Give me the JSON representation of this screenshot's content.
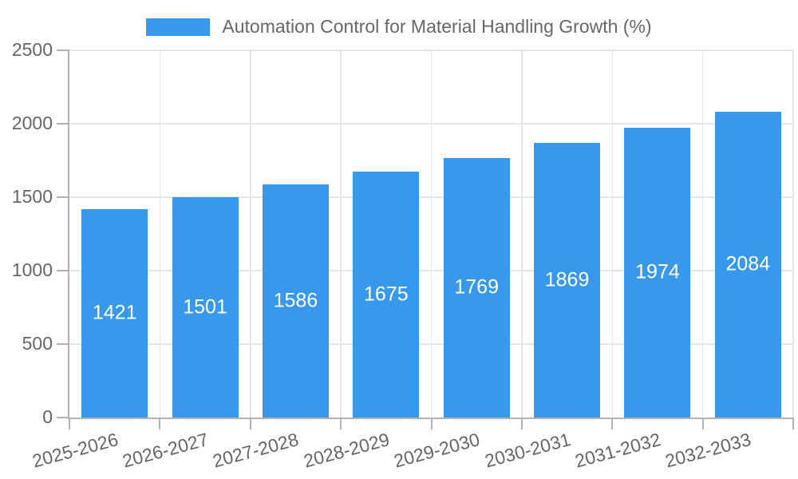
{
  "chart_data": {
    "type": "bar",
    "title": "Automation Control for Material Handling Growth (%)",
    "categories": [
      "2025-2026",
      "2026-2027",
      "2027-2028",
      "2028-2029",
      "2029-2030",
      "2030-2031",
      "2031-2032",
      "2032-2033"
    ],
    "values": [
      1421,
      1501,
      1586,
      1675,
      1769,
      1869,
      1974,
      2084
    ],
    "xlabel": "",
    "ylabel": "",
    "ylim": [
      0,
      2500
    ],
    "yticks": [
      0,
      500,
      1000,
      1500,
      2000,
      2500
    ],
    "grid": true,
    "legend_position": "top",
    "colors": {
      "bar": "#3898ec",
      "bar_label": "#ffffff",
      "axis_text": "#666666",
      "grid_line": "#e6e6e6",
      "axis_line": "#b3b3b3"
    }
  }
}
